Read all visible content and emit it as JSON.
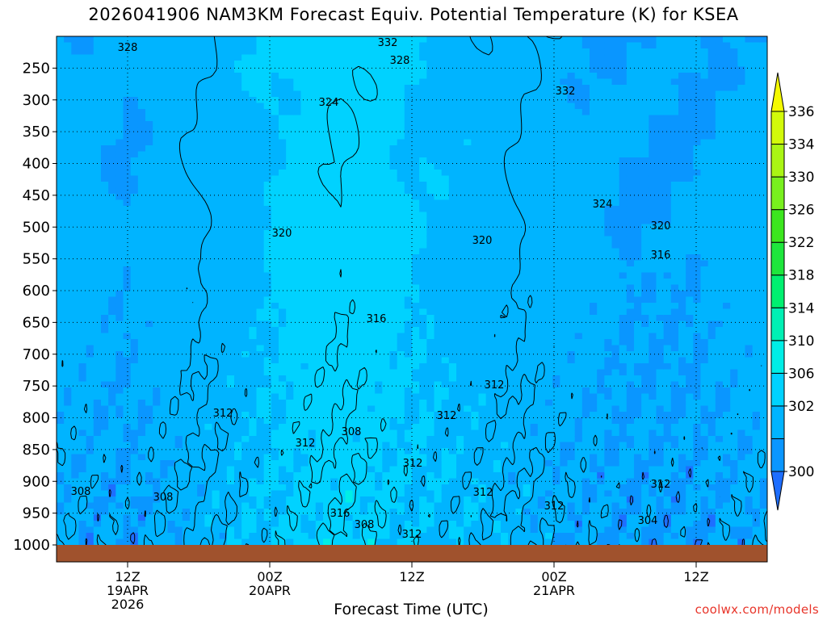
{
  "title": "2026041906 NAM3KM Forecast Equiv. Potential Temperature (K) for KSEA",
  "xlabel": "Forecast Time (UTC)",
  "credit": "coolwx.com/models",
  "colors": {
    "ground": "#a0522d",
    "grid": "#000000",
    "scale": [
      "#1e6eff",
      "#0a96ff",
      "#00b4ff",
      "#00d2ff",
      "#00eee6",
      "#00f0b4",
      "#00f070",
      "#1ee63c",
      "#3ce61e",
      "#78f01e",
      "#aaf514",
      "#d2fa0a",
      "#f5fa00"
    ]
  },
  "chart_data": {
    "type": "heatmap",
    "title": "2026041906 NAM3KM Forecast Equiv. Potential Temperature (K) for KSEA",
    "xlabel": "Forecast Time (UTC)",
    "ylabel": "",
    "x_ticks": [
      {
        "label": "12Z",
        "date": "19APR",
        "year": "2026",
        "hour": 6
      },
      {
        "label": "00Z",
        "date": "20APR",
        "year": "",
        "hour": 18
      },
      {
        "label": "12Z",
        "date": "",
        "year": "",
        "hour": 30
      },
      {
        "label": "00Z",
        "date": "21APR",
        "year": "",
        "hour": 42
      },
      {
        "label": "12Z",
        "date": "",
        "year": "",
        "hour": 54
      }
    ],
    "xlim": [
      0,
      60
    ],
    "y_ticks": [
      250,
      300,
      350,
      400,
      450,
      500,
      550,
      600,
      650,
      700,
      750,
      800,
      850,
      900,
      950,
      1000
    ],
    "ylim": [
      1000,
      200
    ],
    "grid": true,
    "colorbar": {
      "labels": [
        336,
        334,
        330,
        326,
        322,
        318,
        314,
        310,
        306,
        302,
        300
      ],
      "boundaries": [
        300,
        302,
        306,
        310,
        314,
        318,
        322,
        326,
        330,
        334,
        336
      ],
      "extend": "both"
    },
    "contour_interval": 4,
    "profile_at_hours": [
      0,
      6,
      12,
      18,
      24,
      30,
      36,
      42,
      48,
      54,
      60
    ],
    "profile_levels": [
      1000,
      950,
      900,
      850,
      800,
      700,
      600,
      500,
      400,
      300,
      250,
      200
    ],
    "values": [
      [
        303,
        306,
        307,
        309,
        310,
        311,
        313,
        316,
        320,
        325,
        327,
        329
      ],
      [
        302,
        305,
        307,
        308,
        309,
        311,
        313,
        316,
        320,
        325,
        327,
        329
      ],
      [
        304,
        307,
        308,
        309,
        310,
        312,
        314,
        316,
        320,
        324,
        326,
        328
      ],
      [
        306,
        312,
        314,
        311,
        310,
        312,
        314,
        316,
        320,
        324,
        326,
        329
      ],
      [
        308,
        316,
        316,
        313,
        311,
        309,
        312,
        316,
        320,
        323,
        325,
        329
      ],
      [
        306,
        312,
        314,
        312,
        312,
        311,
        314,
        316,
        320,
        324,
        326,
        330
      ],
      [
        305,
        310,
        312,
        312,
        313,
        314,
        315,
        317,
        320,
        324,
        327,
        332
      ],
      [
        303,
        308,
        312,
        313,
        313,
        312,
        314,
        316,
        319,
        325,
        330,
        334
      ],
      [
        302,
        304,
        309,
        312,
        313,
        313,
        312,
        313,
        317,
        325,
        331,
        335
      ],
      [
        302,
        304,
        306,
        309,
        312,
        313,
        312,
        312,
        316,
        323,
        328,
        332
      ],
      [
        303,
        305,
        306,
        309,
        311,
        312,
        311,
        312,
        316,
        322,
        327,
        330
      ]
    ],
    "contour_labels": [
      "328",
      "332",
      "328",
      "332",
      "324",
      "324",
      "320",
      "320",
      "320",
      "316",
      "316",
      "312",
      "312",
      "312",
      "312",
      "312",
      "312",
      "308",
      "308",
      "308",
      "312",
      "316",
      "308",
      "312",
      "312",
      "304"
    ]
  }
}
